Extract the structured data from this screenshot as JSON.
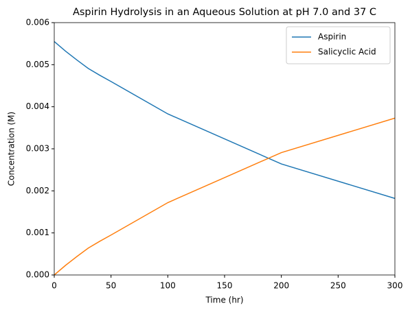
{
  "chart_data": {
    "type": "line",
    "title": "Aspirin Hydrolysis in an Aqueous Solution at pH 7.0 and 37 C",
    "x_label": "Time (hr)",
    "y_label": "Concentration (M)",
    "x": [
      0,
      10,
      20,
      30,
      40,
      50,
      100,
      200,
      300
    ],
    "series": [
      {
        "name": "Aspirin",
        "color": "#1f77b4",
        "values": [
          0.00555,
          0.00532,
          0.00511,
          0.00491,
          0.00475,
          0.0046,
          0.00383,
          0.00264,
          0.00182
        ]
      },
      {
        "name": "Salicyclic Acid",
        "color": "#ff7f0e",
        "values": [
          0,
          0.00023,
          0.00044,
          0.00064,
          0.0008,
          0.00095,
          0.00172,
          0.00291,
          0.00373
        ]
      }
    ],
    "xlim": [
      0,
      300
    ],
    "xticks": [
      0,
      50,
      100,
      150,
      200,
      250,
      300
    ],
    "ylim": [
      0,
      0.006
    ],
    "yticks": [
      {
        "value": 0,
        "label": "0.000"
      },
      {
        "value": 0.001,
        "label": "0.001"
      },
      {
        "value": 0.002,
        "label": "0.002"
      },
      {
        "value": 0.003,
        "label": "0.003"
      },
      {
        "value": 0.004,
        "label": "0.004"
      },
      {
        "value": 0.005,
        "label": "0.005"
      },
      {
        "value": 0.006,
        "label": "0.006"
      }
    ],
    "legend": "upper right",
    "grid": false
  }
}
